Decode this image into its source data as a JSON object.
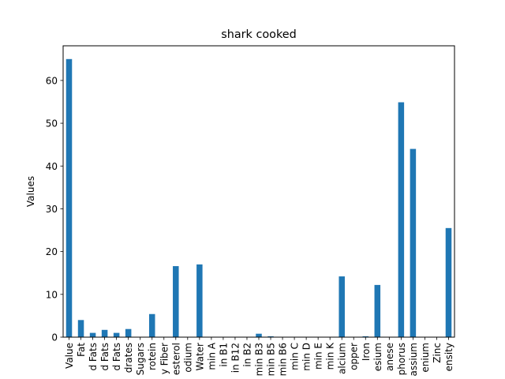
{
  "chart_data": {
    "type": "bar",
    "title": "shark cooked",
    "xlabel": "",
    "ylabel": "Values",
    "ylim": [
      0,
      68.1
    ],
    "yticks": [
      0,
      10,
      20,
      30,
      40,
      50,
      60
    ],
    "grid": false,
    "legend": "none",
    "bar_color": "#1f77b4",
    "categories": [
      "Value",
      "Fat",
      "d Fats",
      "d Fats",
      "d Fats",
      "drates",
      "Sugars",
      "rotein",
      "y Fiber",
      "esterol",
      "odium",
      "Water",
      "min A",
      "in B1",
      "in B12",
      "in B2",
      "min B3",
      "min B5",
      "min B6",
      "min C",
      "min D",
      "min E",
      "min K",
      "alcium",
      "opper",
      "Iron",
      "esium",
      "anese",
      "phorus",
      "assium",
      "enium",
      "Zinc",
      "ensity"
    ],
    "values": [
      65,
      4,
      1,
      1.7,
      1,
      1.9,
      0,
      5.4,
      0,
      16.6,
      0,
      17,
      0,
      0,
      0,
      0,
      0.8,
      0.2,
      0,
      0,
      0,
      0,
      0,
      14.2,
      0,
      0.2,
      12.2,
      0,
      54.9,
      44,
      0,
      0,
      25.5
    ]
  }
}
